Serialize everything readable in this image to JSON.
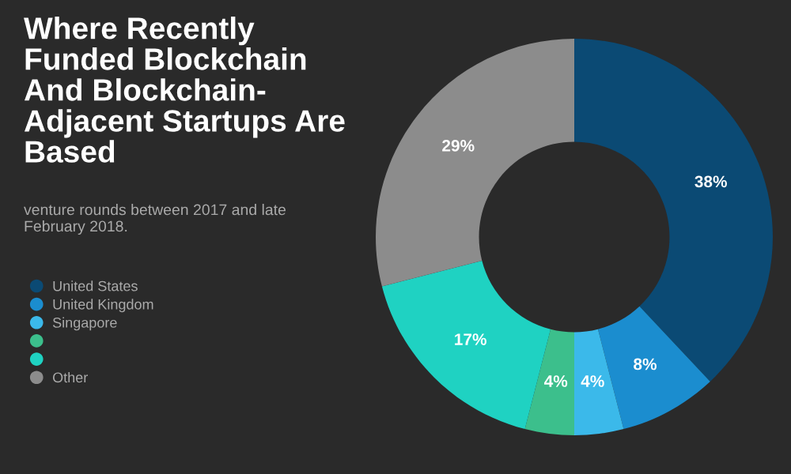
{
  "chart_data": {
    "type": "donut",
    "title": "Where Recently\nFunded Blockchain\nAnd Blockchain-\nAdjacent Startups Are\nBased",
    "subtitle": "venture rounds between 2017 and late\nFebruary 2018.",
    "categories": [
      "United States",
      "United Kingdom",
      "Singapore",
      null,
      null,
      "Other"
    ],
    "values": [
      38,
      8,
      4,
      4,
      17,
      29
    ],
    "colors": [
      "#0b4a74",
      "#1b8dcf",
      "#3bb9ea",
      "#3cbf8c",
      "#1fd2c2",
      "#8c8c8c"
    ],
    "value_labels": [
      "38%",
      "8%",
      "4%",
      "4%",
      "17%",
      "29%"
    ],
    "legend": "left"
  }
}
